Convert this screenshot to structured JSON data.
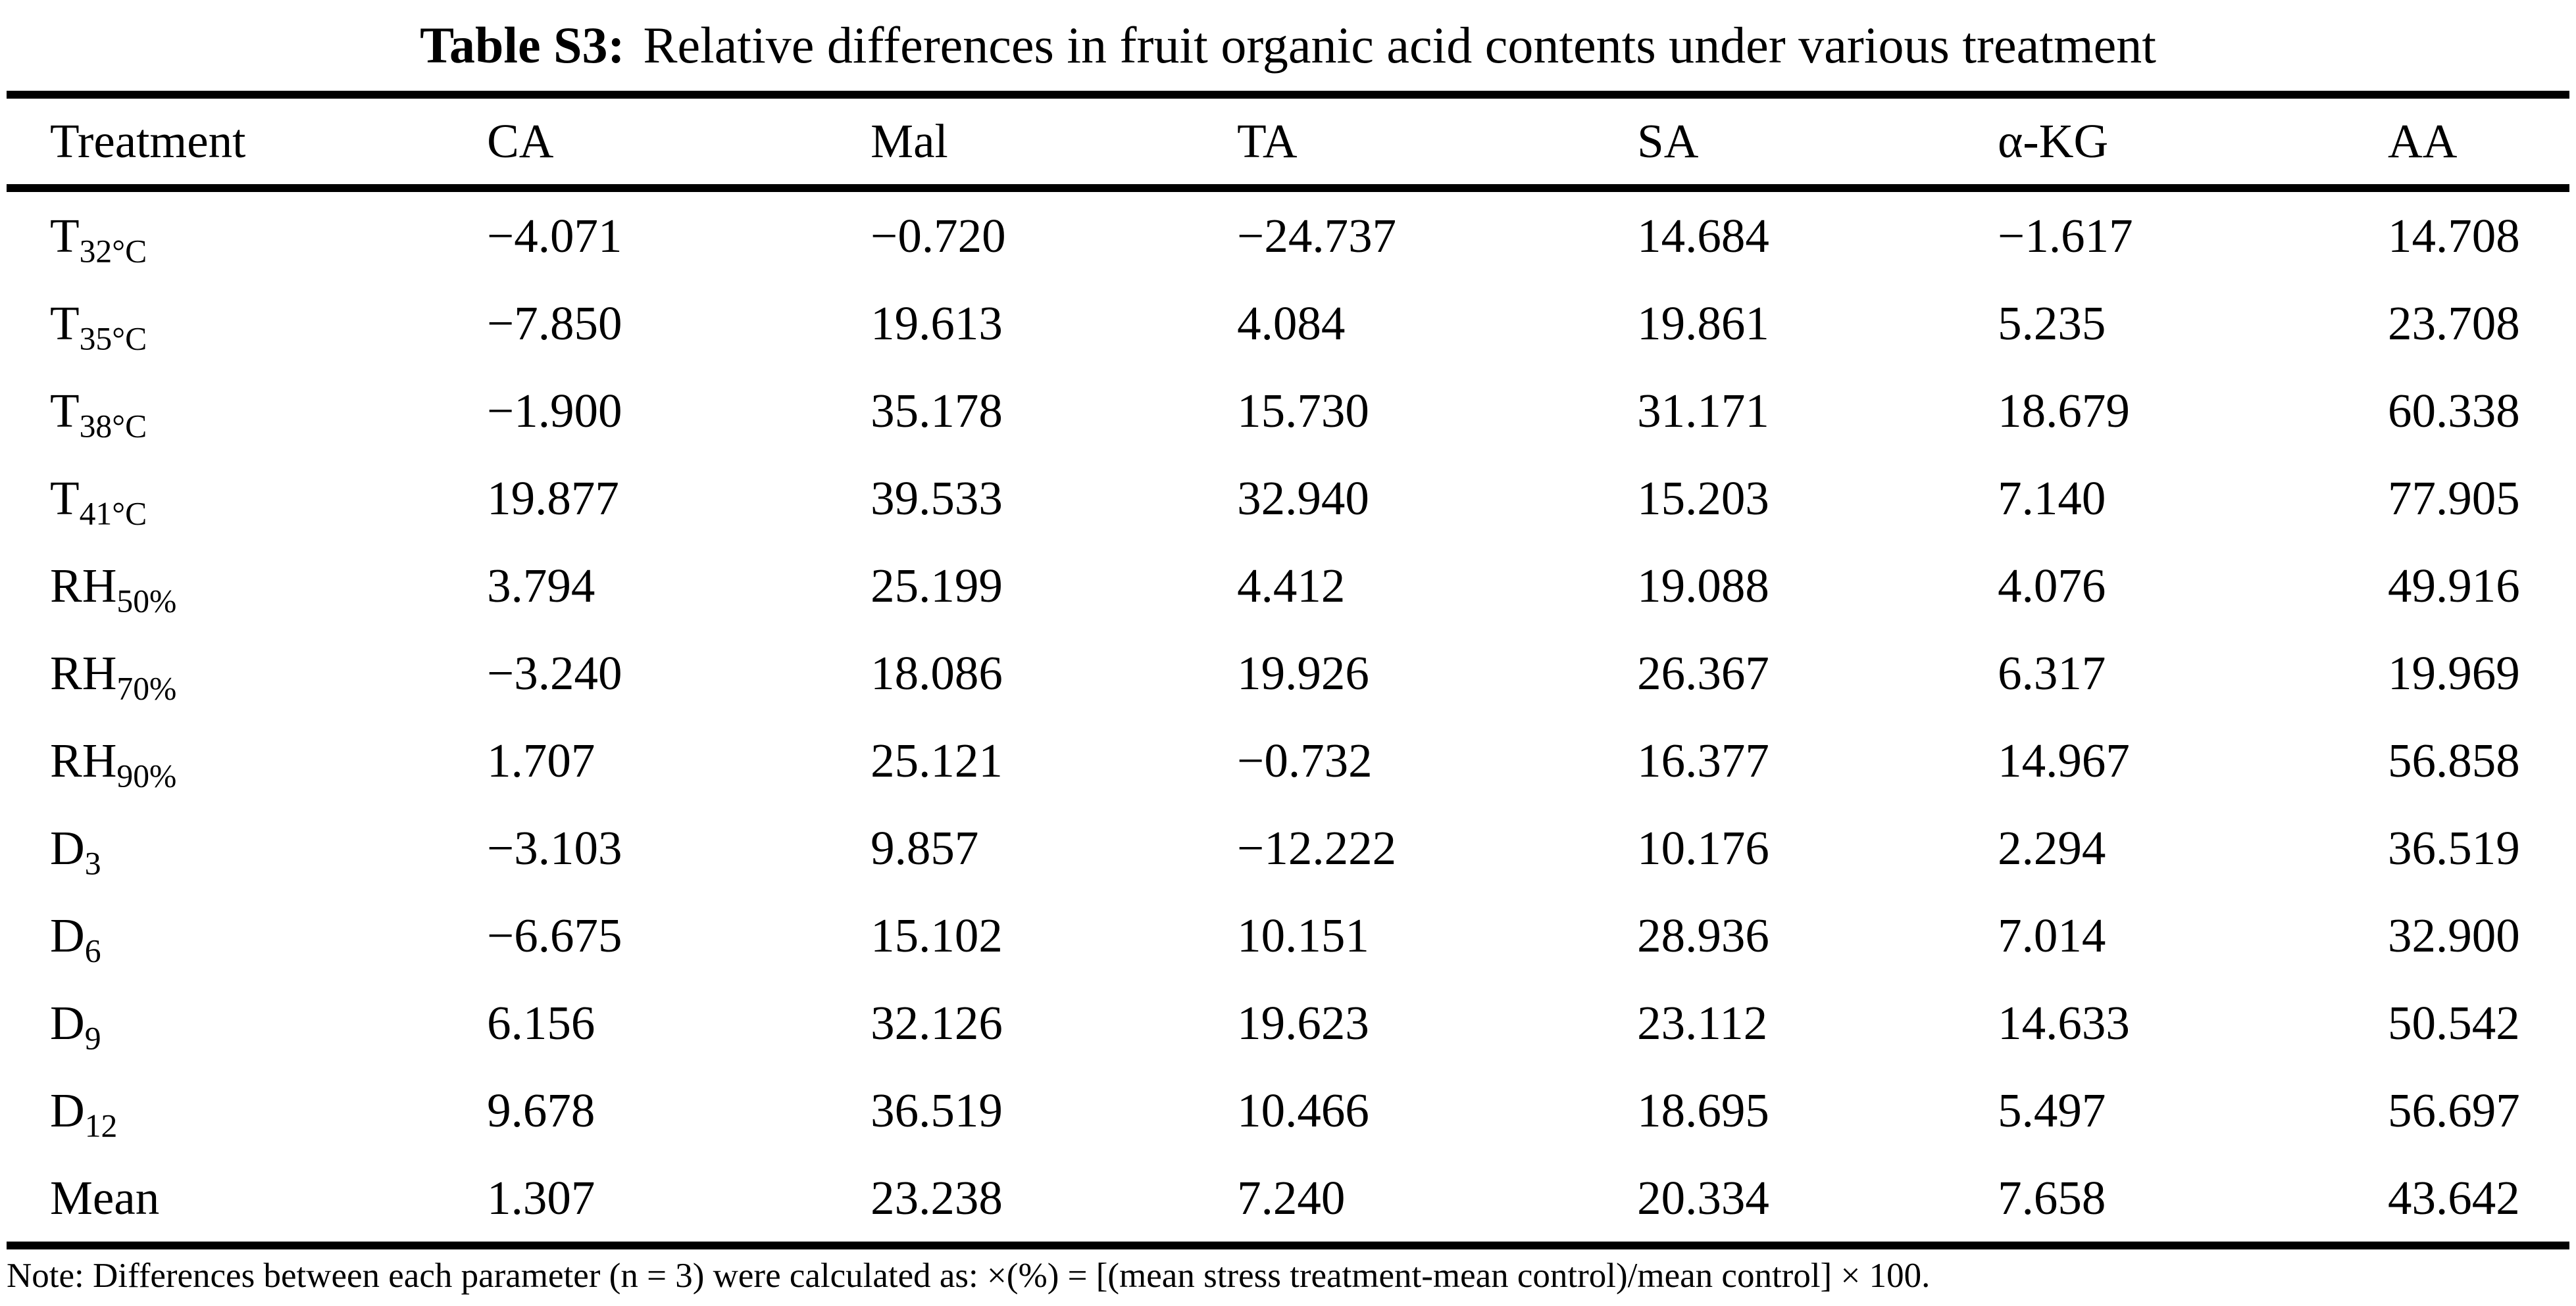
{
  "title": {
    "label": "Table S3:",
    "text": "Relative differences in fruit organic acid contents under various treatment"
  },
  "table": {
    "columns": [
      "Treatment",
      "CA",
      "Mal",
      "TA",
      "SA",
      "α-KG",
      "AA"
    ],
    "rows": [
      {
        "treatment": {
          "base": "T",
          "sub": "32°C"
        },
        "values": [
          "−4.071",
          "−0.720",
          "−24.737",
          "14.684",
          "−1.617",
          "14.708"
        ]
      },
      {
        "treatment": {
          "base": "T",
          "sub": "35°C"
        },
        "values": [
          "−7.850",
          "19.613",
          "4.084",
          "19.861",
          "5.235",
          "23.708"
        ]
      },
      {
        "treatment": {
          "base": "T",
          "sub": "38°C"
        },
        "values": [
          "−1.900",
          "35.178",
          "15.730",
          "31.171",
          "18.679",
          "60.338"
        ]
      },
      {
        "treatment": {
          "base": "T",
          "sub": "41°C"
        },
        "values": [
          "19.877",
          "39.533",
          "32.940",
          "15.203",
          "7.140",
          "77.905"
        ]
      },
      {
        "treatment": {
          "base": "RH",
          "sub": "50%"
        },
        "values": [
          "3.794",
          "25.199",
          "4.412",
          "19.088",
          "4.076",
          "49.916"
        ]
      },
      {
        "treatment": {
          "base": "RH",
          "sub": "70%"
        },
        "values": [
          "−3.240",
          "18.086",
          "19.926",
          "26.367",
          "6.317",
          "19.969"
        ]
      },
      {
        "treatment": {
          "base": "RH",
          "sub": "90%"
        },
        "values": [
          "1.707",
          "25.121",
          "−0.732",
          "16.377",
          "14.967",
          "56.858"
        ]
      },
      {
        "treatment": {
          "base": "D",
          "sub": "3"
        },
        "values": [
          "−3.103",
          "9.857",
          "−12.222",
          "10.176",
          "2.294",
          "36.519"
        ]
      },
      {
        "treatment": {
          "base": "D",
          "sub": "6"
        },
        "values": [
          "−6.675",
          "15.102",
          "10.151",
          "28.936",
          "7.014",
          "32.900"
        ]
      },
      {
        "treatment": {
          "base": "D",
          "sub": "9"
        },
        "values": [
          "6.156",
          "32.126",
          "19.623",
          "23.112",
          "14.633",
          "50.542"
        ]
      },
      {
        "treatment": {
          "base": "D",
          "sub": "12"
        },
        "values": [
          "9.678",
          "36.519",
          "10.466",
          "18.695",
          "5.497",
          "56.697"
        ]
      },
      {
        "treatment": {
          "base": "Mean",
          "sub": ""
        },
        "values": [
          "1.307",
          "23.238",
          "7.240",
          "20.334",
          "7.658",
          "43.642"
        ]
      }
    ]
  },
  "note": "Note: Differences between each parameter (n = 3) were calculated as: ×(%) = [(mean stress treatment-mean control)/mean control] × 100."
}
